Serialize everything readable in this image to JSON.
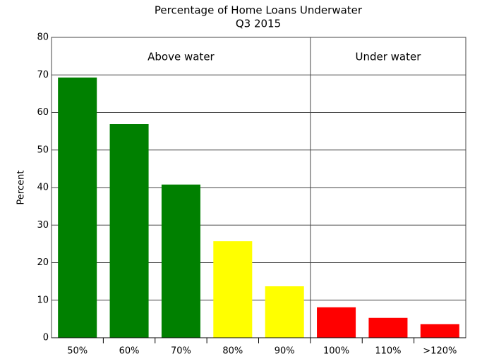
{
  "chart_data": {
    "type": "bar",
    "title": "Percentage of Home Loans Underwater",
    "subtitle": "Q3 2015",
    "y_label": "Percent",
    "categories": [
      "50%",
      "60%",
      "70%",
      "80%",
      "90%",
      "100%",
      "110%",
      ">120%"
    ],
    "values": [
      69.3,
      56.9,
      40.8,
      25.7,
      13.7,
      8.1,
      5.3,
      3.6
    ],
    "colors": [
      "#008000",
      "#008000",
      "#008000",
      "#ffff00",
      "#ffff00",
      "#ff0000",
      "#ff0000",
      "#ff0000"
    ],
    "ylim": [
      0,
      80
    ],
    "yticks": [
      0,
      10,
      20,
      30,
      40,
      50,
      60,
      70,
      80
    ],
    "grid": true,
    "regions": [
      {
        "label": "Above water",
        "from": "50%",
        "to": "90%"
      },
      {
        "label": "Under water",
        "from": "100%",
        "to": ">120%"
      }
    ]
  }
}
